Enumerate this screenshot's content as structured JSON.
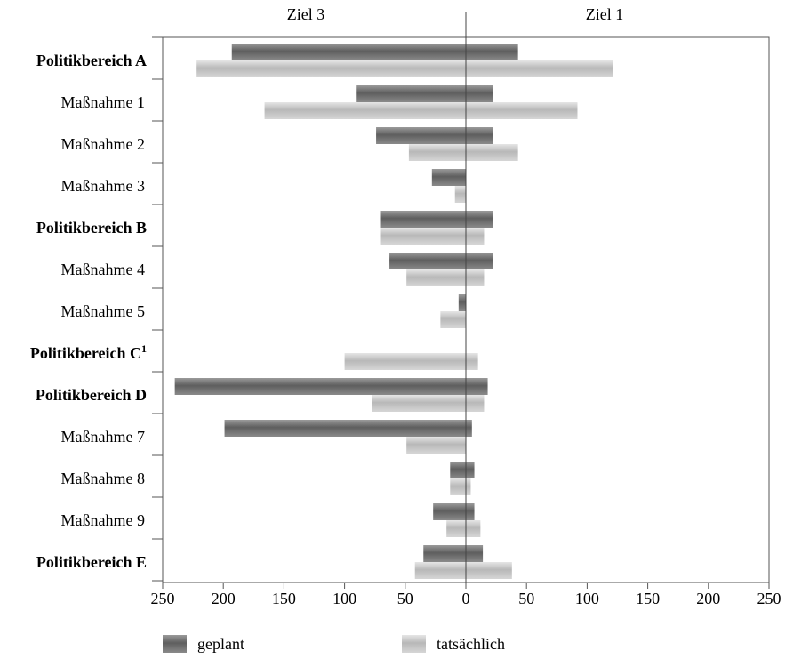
{
  "chart_data": {
    "type": "bar",
    "orientation": "horizontal",
    "side_labels": {
      "left": "Ziel 3",
      "right": "Ziel 1"
    },
    "categories": [
      "Politikbereich A",
      "Maßnahme 1",
      "Maßnahme 2",
      "Maßnahme 3",
      "Politikbereich B",
      "Maßnahme 4",
      "Maßnahme 5",
      "Politikbereich C",
      "Politikbereich D",
      "Maßnahme 7",
      "Maßnahme 8",
      "Maßnahme 9",
      "Politikbereich E"
    ],
    "category_superscripts": [
      "",
      "",
      "",
      "",
      "",
      "",
      "",
      "1",
      "",
      "",
      "",
      "",
      ""
    ],
    "bold_categories": [
      "Politikbereich A",
      "Politikbereich B",
      "Politikbereich C",
      "Politikbereich D",
      "Politikbereich E"
    ],
    "series": [
      {
        "name": "geplant",
        "color": "#6e6e6e",
        "ziel3": [
          193,
          90,
          74,
          28,
          70,
          63,
          6,
          null,
          240,
          199,
          13,
          27,
          35
        ],
        "ziel1": [
          43,
          22,
          22,
          0,
          22,
          22,
          0,
          null,
          18,
          5,
          7,
          7,
          14
        ]
      },
      {
        "name": "tatsächlich",
        "color": "#c8c8c8",
        "ziel3": [
          222,
          166,
          47,
          9,
          70,
          49,
          21,
          100,
          77,
          49,
          13,
          16,
          42
        ],
        "ziel1": [
          121,
          92,
          43,
          0,
          15,
          15,
          0,
          10,
          15,
          0,
          4,
          12,
          38
        ]
      }
    ],
    "x_ticks": [
      "250",
      "200",
      "150",
      "100",
      "50",
      "0",
      "50",
      "100",
      "150",
      "200",
      "250"
    ],
    "xlim": [
      -250,
      250
    ],
    "legend": {
      "position": "bottom",
      "items": [
        "geplant",
        "tatsächlich"
      ]
    }
  }
}
